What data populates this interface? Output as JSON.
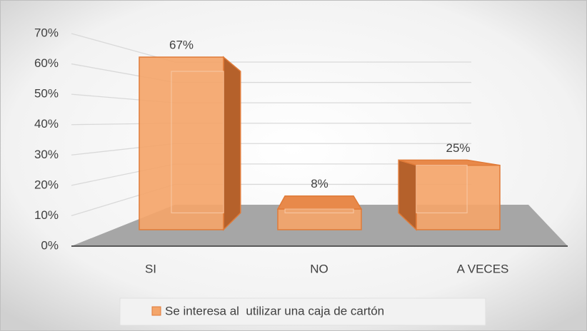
{
  "chart_data": {
    "type": "bar3d",
    "categories": [
      "SI",
      "NO",
      "A VECES"
    ],
    "series": [
      {
        "name": "Se interesa al  utilizar una caja de cartón",
        "color": "#f4a56a",
        "values": [
          67,
          8,
          25
        ],
        "value_labels": [
          "67%",
          "8%",
          "25%"
        ]
      }
    ],
    "ylim": [
      0,
      70
    ],
    "yticks": [
      {
        "value": 0,
        "label": "0%"
      },
      {
        "value": 10,
        "label": "10%"
      },
      {
        "value": 20,
        "label": "20%"
      },
      {
        "value": 30,
        "label": "30%"
      },
      {
        "value": 40,
        "label": "40%"
      },
      {
        "value": 50,
        "label": "50%"
      },
      {
        "value": 60,
        "label": "60%"
      },
      {
        "value": 70,
        "label": "70%"
      }
    ],
    "grid": true,
    "legend": "bottom"
  }
}
